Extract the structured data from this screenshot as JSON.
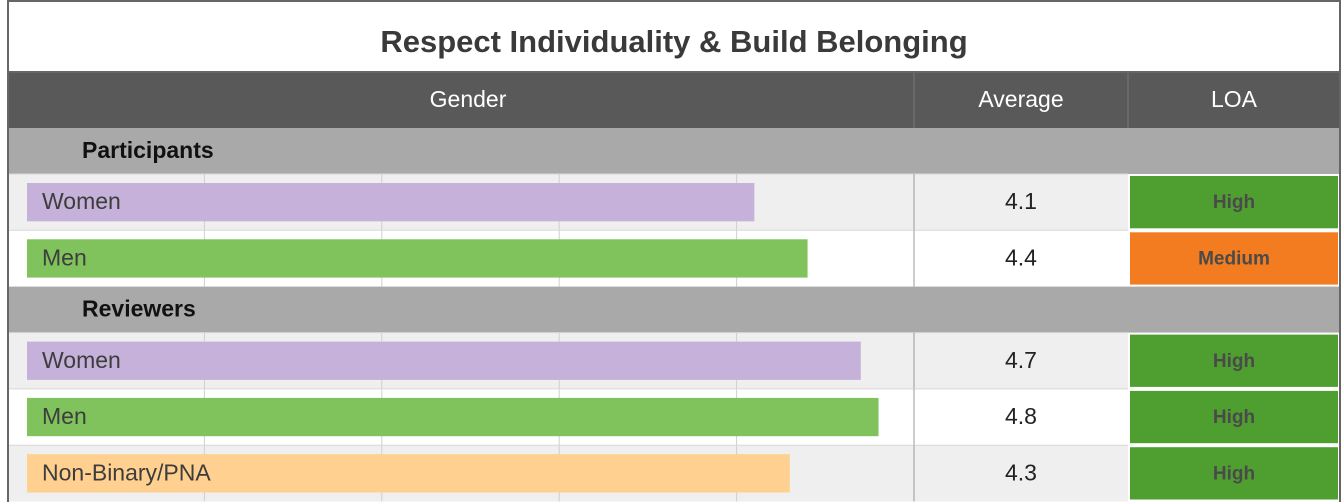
{
  "title": "Respect Individuality & Build Belonging",
  "header": {
    "gender": "Gender",
    "average": "Average",
    "loa": "LOA"
  },
  "scale": {
    "min": 0,
    "max": 5,
    "gridlines": [
      1,
      2,
      3,
      4
    ]
  },
  "groups": [
    {
      "name": "Participants",
      "rows": [
        {
          "label": "Women",
          "value": 4.1,
          "color": "#c5b1d9",
          "loa": "High",
          "loa_color": "#4e9f2f"
        },
        {
          "label": "Men",
          "value": 4.4,
          "color": "#80c35d",
          "loa": "Medium",
          "loa_color": "#f47c20"
        }
      ]
    },
    {
      "name": "Reviewers",
      "rows": [
        {
          "label": "Women",
          "value": 4.7,
          "color": "#c5b1d9",
          "loa": "High",
          "loa_color": "#4e9f2f"
        },
        {
          "label": "Men",
          "value": 4.8,
          "color": "#80c35d",
          "loa": "High",
          "loa_color": "#4e9f2f"
        },
        {
          "label": "Non-Binary/PNA",
          "value": 4.3,
          "color": "#ffd08f",
          "loa": "High",
          "loa_color": "#4e9f2f"
        }
      ]
    }
  ]
}
